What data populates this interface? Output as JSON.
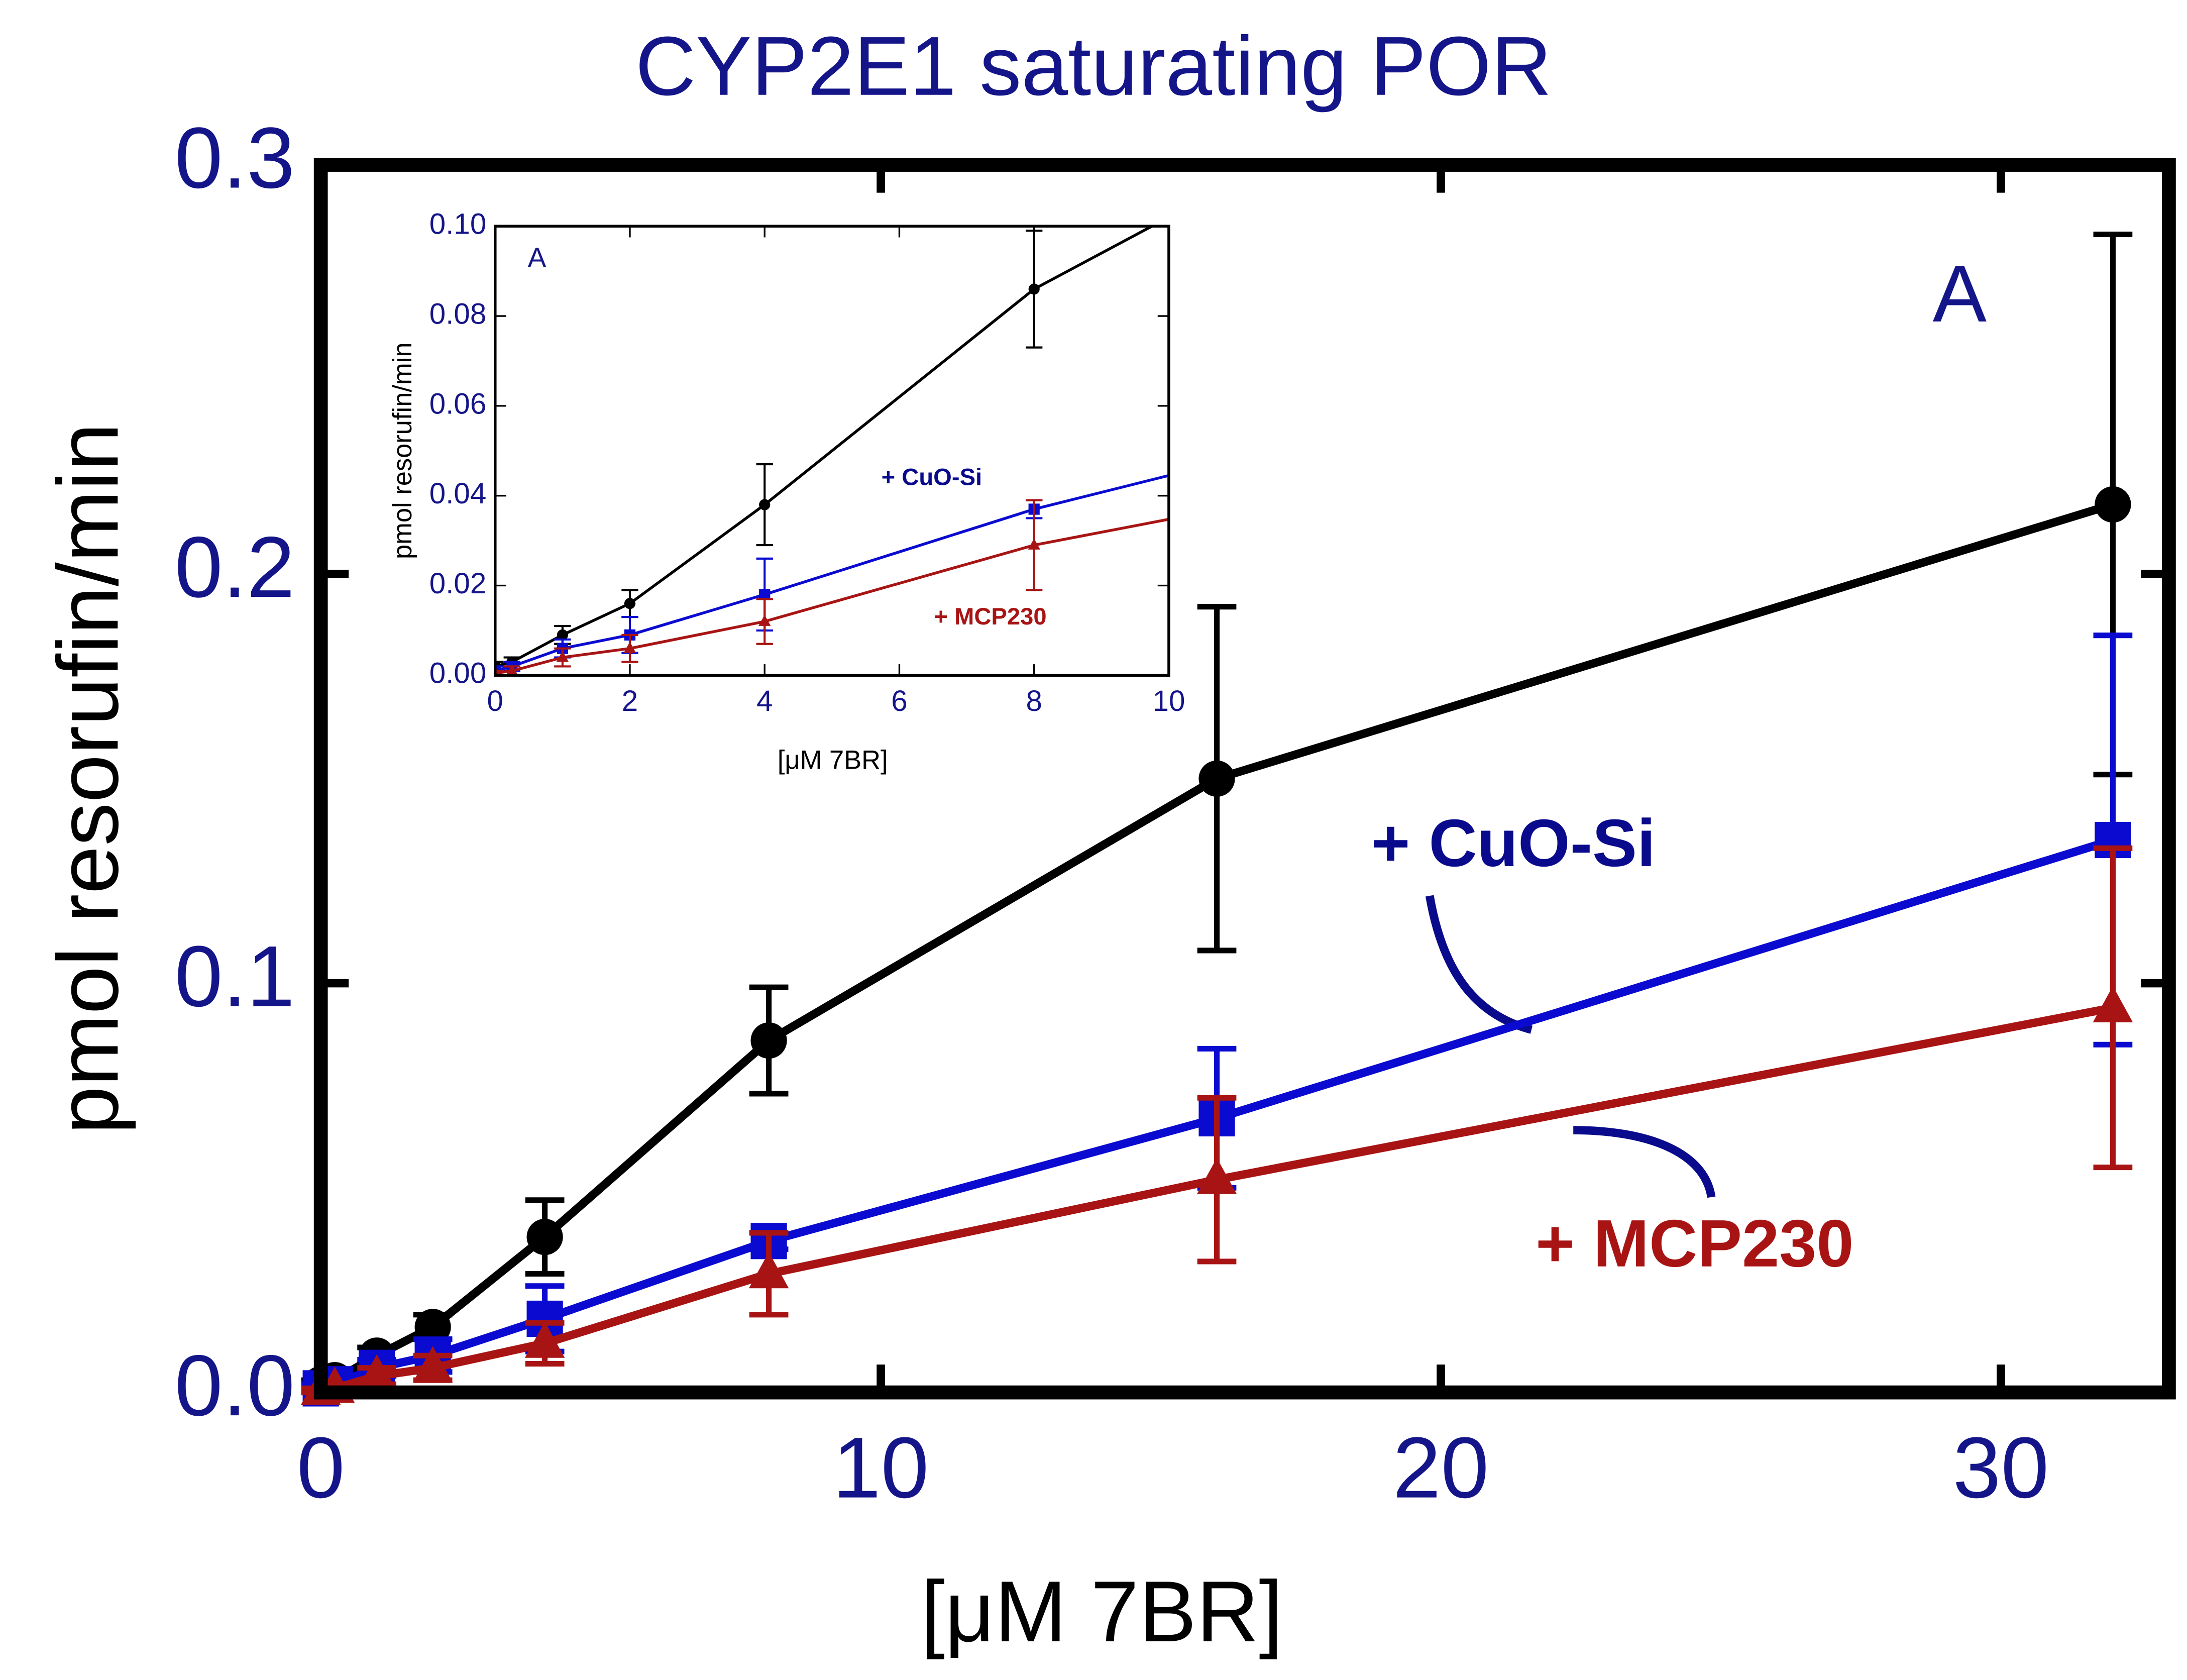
{
  "chart_data": [
    {
      "type": "line",
      "title": "CYP2E1 saturating POR",
      "xlabel": "[μM 7BR]",
      "ylabel": "pmol resorufin/min",
      "panel_label": "A",
      "x": [
        0,
        0.25,
        1,
        2,
        4,
        8,
        16,
        32
      ],
      "series": [
        {
          "color": "#000000",
          "marker": "circle",
          "values": [
            0.002,
            0.003,
            0.009,
            0.016,
            0.038,
            0.086,
            0.15,
            0.217
          ],
          "errors": [
            0.001,
            0.001,
            0.002,
            0.003,
            0.009,
            0.013,
            0.042,
            0.066
          ]
        },
        {
          "name": "+ CuO-Si",
          "color": "#0a0ad0",
          "marker": "square",
          "values": [
            0.001,
            0.002,
            0.006,
            0.009,
            0.018,
            0.037,
            0.067,
            0.135
          ],
          "errors": [
            0.001,
            0.001,
            0.002,
            0.004,
            0.008,
            0.002,
            0.017,
            0.05
          ]
        },
        {
          "name": "+ MCP230",
          "color": "#a81414",
          "marker": "triangle",
          "values": [
            0.0005,
            0.001,
            0.004,
            0.006,
            0.012,
            0.029,
            0.052,
            0.094
          ],
          "errors": [
            0.0005,
            0.001,
            0.002,
            0.003,
            0.005,
            0.01,
            0.02,
            0.039
          ]
        }
      ],
      "xlim": [
        0,
        33
      ],
      "ylim": [
        0,
        0.3
      ],
      "xticks": [
        0,
        10,
        20,
        30
      ],
      "yticks": [
        {
          "value": 0,
          "label": "0.0"
        },
        {
          "value": 0.1,
          "label": "0.1"
        },
        {
          "value": 0.2,
          "label": "0.2"
        },
        {
          "value": 0.3,
          "label": "0.3"
        }
      ]
    },
    {
      "type": "line",
      "xlabel": "[μM 7BR]",
      "ylabel": "pmol resorufin/min",
      "panel_label": "A",
      "x": [
        0,
        0.25,
        1,
        2,
        4,
        8,
        16
      ],
      "series": [
        {
          "color": "#000000",
          "marker": "circle",
          "values": [
            0.002,
            0.003,
            0.009,
            0.016,
            0.038,
            0.086,
            0.15
          ],
          "errors": [
            0.001,
            0.001,
            0.002,
            0.003,
            0.009,
            0.013,
            0.042
          ]
        },
        {
          "name": "+ CuO-Si",
          "color": "#0a0ad0",
          "marker": "square",
          "values": [
            0.001,
            0.002,
            0.006,
            0.009,
            0.018,
            0.037,
            0.067
          ],
          "errors": [
            0.001,
            0.001,
            0.002,
            0.004,
            0.008,
            0.002,
            0.017
          ]
        },
        {
          "name": "+ MCP230",
          "color": "#a81414",
          "marker": "triangle",
          "values": [
            0.0005,
            0.001,
            0.004,
            0.006,
            0.012,
            0.029,
            0.052
          ],
          "errors": [
            0.0005,
            0.001,
            0.002,
            0.003,
            0.005,
            0.01,
            0.02
          ]
        }
      ],
      "xlim": [
        0,
        10
      ],
      "ylim": [
        0,
        0.1
      ],
      "xticks": [
        0,
        2,
        4,
        6,
        8,
        10
      ],
      "yticks": [
        {
          "value": 0,
          "label": "0.00"
        },
        {
          "value": 0.02,
          "label": "0.02"
        },
        {
          "value": 0.04,
          "label": "0.04"
        },
        {
          "value": 0.06,
          "label": "0.06"
        },
        {
          "value": 0.08,
          "label": "0.08"
        },
        {
          "value": 0.1,
          "label": "0.10"
        }
      ]
    }
  ]
}
